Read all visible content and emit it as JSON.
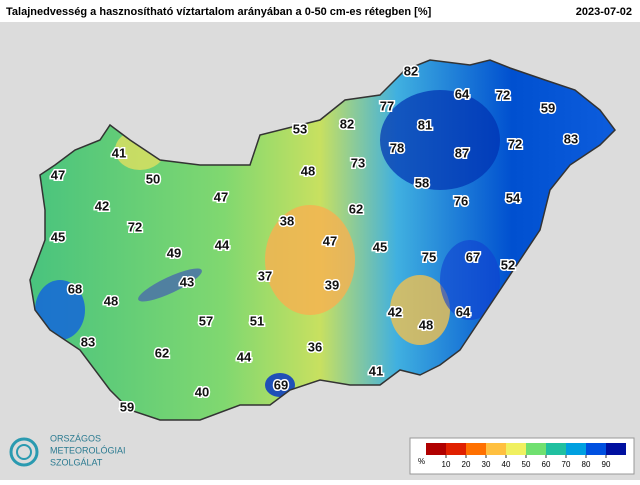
{
  "header": {
    "title": "Talajnedvesség a hasznosítható víztartalom arányában a 0-50 cm-es rétegben [%]",
    "date": "2023-07-02"
  },
  "stations": [
    82,
    64,
    72,
    59,
    77,
    82,
    81,
    53,
    83,
    78,
    87,
    72,
    73,
    41,
    48,
    50,
    47,
    58,
    47,
    42,
    62,
    76,
    54,
    38,
    72,
    45,
    47,
    44,
    49,
    45,
    75,
    67,
    52,
    37,
    43,
    39,
    68,
    48,
    42,
    48,
    64,
    57,
    51,
    83,
    62,
    36,
    44,
    41,
    69,
    40,
    59
  ],
  "legend": {
    "unit": "%",
    "ticks": [
      10,
      20,
      30,
      40,
      50,
      60,
      70,
      80,
      90
    ],
    "colors": [
      "#b00000",
      "#e02000",
      "#ff7000",
      "#ffc040",
      "#f0f060",
      "#70e070",
      "#20c0a0",
      "#00a0e0",
      "#0050e0",
      "#0010a0"
    ]
  },
  "logo": {
    "line1": "ORSZÁGOS",
    "line2": "METEOROLÓGIAI",
    "line3": "SZOLGÁLAT"
  }
}
